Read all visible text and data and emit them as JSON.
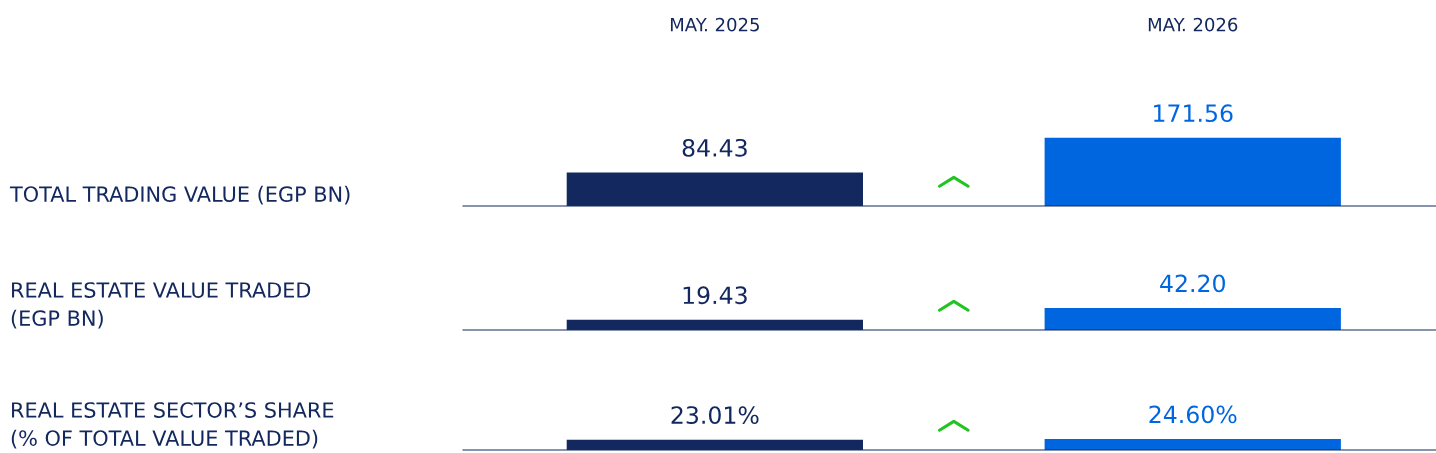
{
  "chart_data": [
    {
      "type": "bar",
      "ylabel": "TOTAL TRADING VALUE (EGP BN)",
      "categories": [
        "MAY. 2025",
        "MAY. 2026"
      ],
      "values": [
        84.43,
        171.56
      ],
      "colors": [
        "#13285e",
        "#0066e0"
      ],
      "data_labels": true,
      "tick_labels": "x",
      "grid": false,
      "legend": false
    },
    {
      "type": "bar",
      "ylabel": "REAL ESTATE VALUE TRADED\n(EGP BN)",
      "categories": [
        null,
        null
      ],
      "values": [
        19.43,
        42.2
      ],
      "colors": [
        "#13285e",
        "#0066e0"
      ],
      "value_labels": [
        "19.43",
        "42.20"
      ],
      "tick_labels": false,
      "grid": false,
      "legend": false
    },
    {
      "type": "bar",
      "ylabel": "REAL ESTATE SECTOR’S SHARE\n(% OF TOTAL VALUE TRADED)",
      "categories": [
        null,
        null
      ],
      "values": [
        23.01,
        24.6
      ],
      "colors": [
        "#13285e",
        "#0066e0"
      ],
      "value_labels": [
        "23.01%",
        "24.60%"
      ],
      "tick_labels": false,
      "grid": false,
      "legend": false
    }
  ]
}
